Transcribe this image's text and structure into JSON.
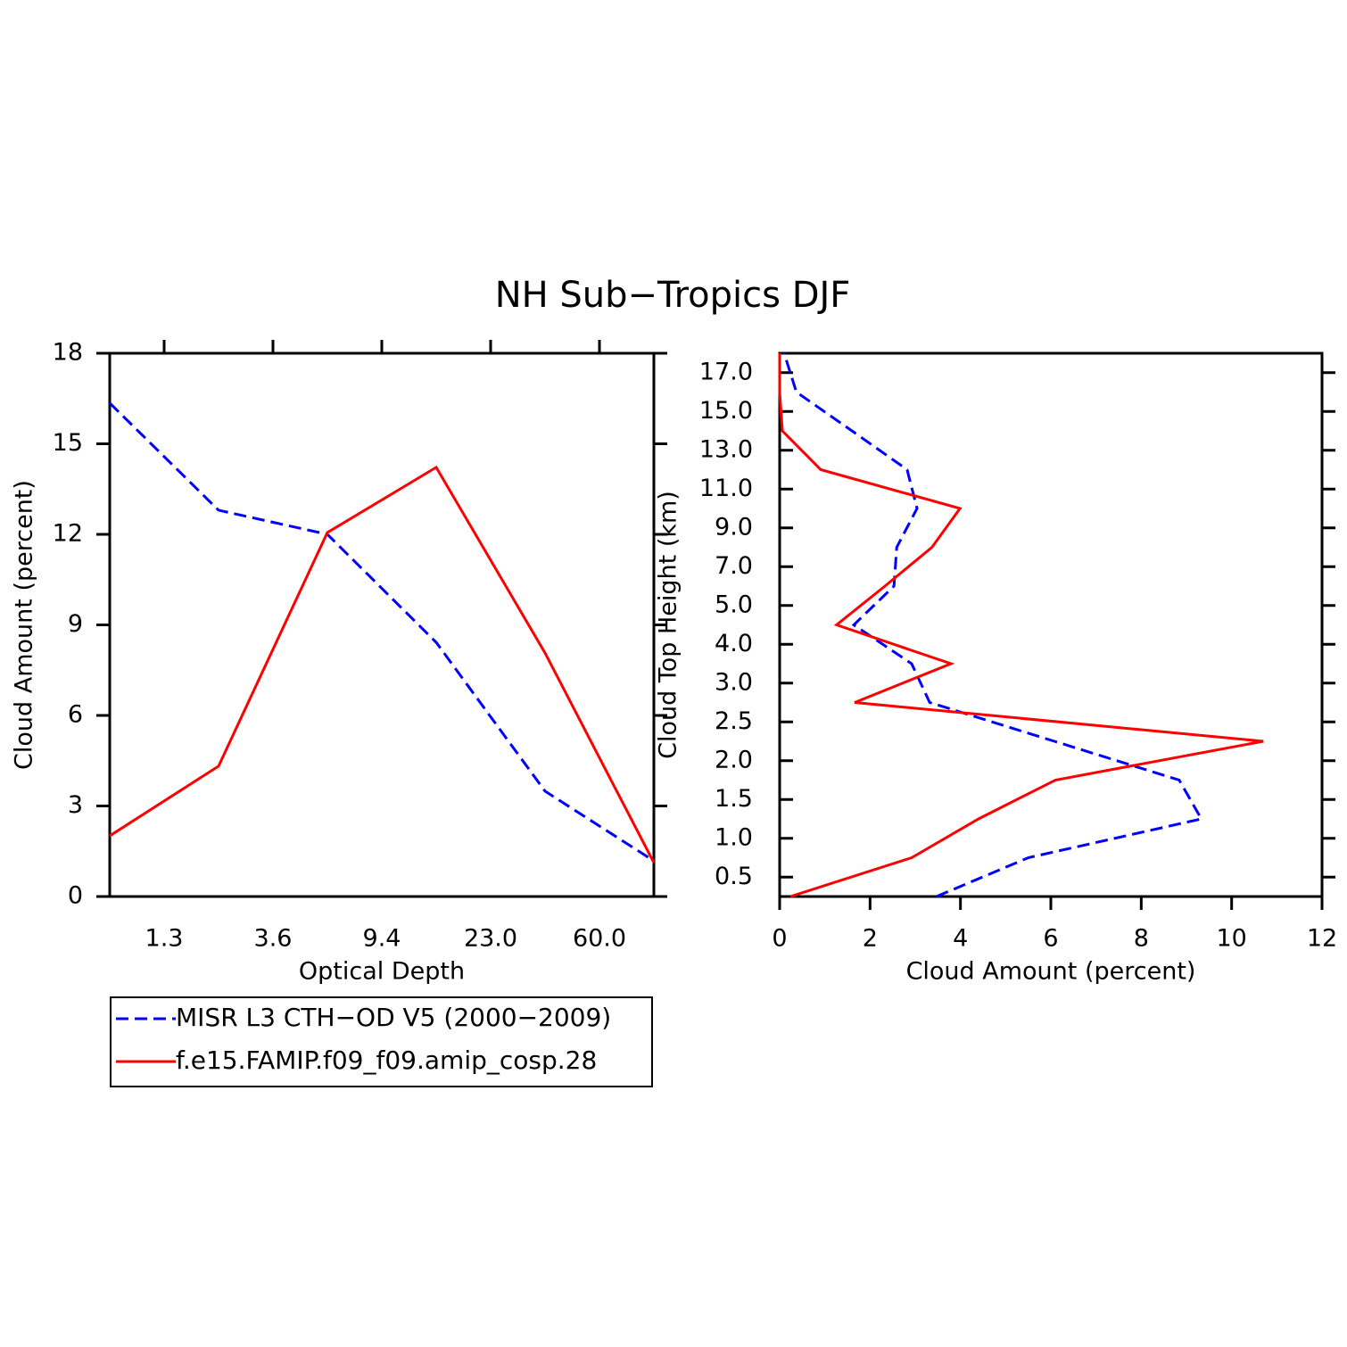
{
  "title": "NH Sub−Tropics DJF",
  "chart_data": [
    {
      "type": "line",
      "orientation": "vertical",
      "xlabel": "Optical Depth",
      "ylabel": "Cloud Amount (percent)",
      "x": [
        0,
        2,
        4,
        6,
        8,
        10
      ],
      "xlim": [
        0,
        10
      ],
      "xticks": [
        {
          "value": 1,
          "label": "1.3"
        },
        {
          "value": 3,
          "label": "3.6"
        },
        {
          "value": 5,
          "label": "9.4"
        },
        {
          "value": 7,
          "label": "23.0"
        },
        {
          "value": 9,
          "label": "60.0"
        }
      ],
      "ylim": [
        0,
        18
      ],
      "yticks": [
        0,
        3,
        6,
        9,
        12,
        15,
        18
      ],
      "series": [
        {
          "name": "MISR L3 CTH−OD V5 (2000−2009)",
          "color": "#0000ff",
          "dashed": true,
          "values": [
            16.35,
            12.8,
            12.0,
            8.42,
            3.49,
            1.18
          ]
        },
        {
          "name": "f.e15.FAMIP.f09_f09.amip_cosp.28",
          "color": "#ff0000",
          "dashed": false,
          "values": [
            2.01,
            4.32,
            12.06,
            14.22,
            8.07,
            1.12
          ]
        }
      ]
    },
    {
      "type": "line",
      "orientation": "horizontal",
      "xlabel": "Cloud Amount (percent)",
      "ylabel": "Cloud Top Height (km)",
      "y": [
        0,
        1,
        2,
        3,
        4,
        5,
        6,
        7,
        8,
        9,
        10,
        11,
        12,
        13,
        14
      ],
      "ylim": [
        0,
        14
      ],
      "yticks": [
        {
          "value": 0.5,
          "label": "0.5"
        },
        {
          "value": 1.5,
          "label": "1.0"
        },
        {
          "value": 2.5,
          "label": "1.5"
        },
        {
          "value": 3.5,
          "label": "2.0"
        },
        {
          "value": 4.5,
          "label": "2.5"
        },
        {
          "value": 5.5,
          "label": "3.0"
        },
        {
          "value": 6.5,
          "label": "4.0"
        },
        {
          "value": 7.5,
          "label": "5.0"
        },
        {
          "value": 8.5,
          "label": "7.0"
        },
        {
          "value": 9.5,
          "label": "9.0"
        },
        {
          "value": 10.5,
          "label": "11.0"
        },
        {
          "value": 11.5,
          "label": "13.0"
        },
        {
          "value": 12.5,
          "label": "15.0"
        },
        {
          "value": 13.5,
          "label": "17.0"
        }
      ],
      "xlim": [
        0,
        12
      ],
      "xticks": [
        0,
        2,
        4,
        6,
        8,
        10,
        12
      ],
      "series": [
        {
          "color": "#0000ff",
          "dashed": true,
          "values": [
            3.47,
            5.5,
            9.33,
            8.84,
            6.08,
            3.32,
            2.92,
            1.64,
            2.53,
            2.59,
            3.04,
            2.82,
            1.6,
            0.37,
            0.1
          ]
        },
        {
          "color": "#ff0000",
          "dashed": false,
          "values": [
            0.24,
            2.92,
            4.4,
            6.1,
            10.7,
            1.66,
            3.79,
            1.26,
            2.33,
            3.37,
            3.99,
            0.91,
            0.06,
            0.0,
            0.0
          ]
        }
      ]
    }
  ]
}
